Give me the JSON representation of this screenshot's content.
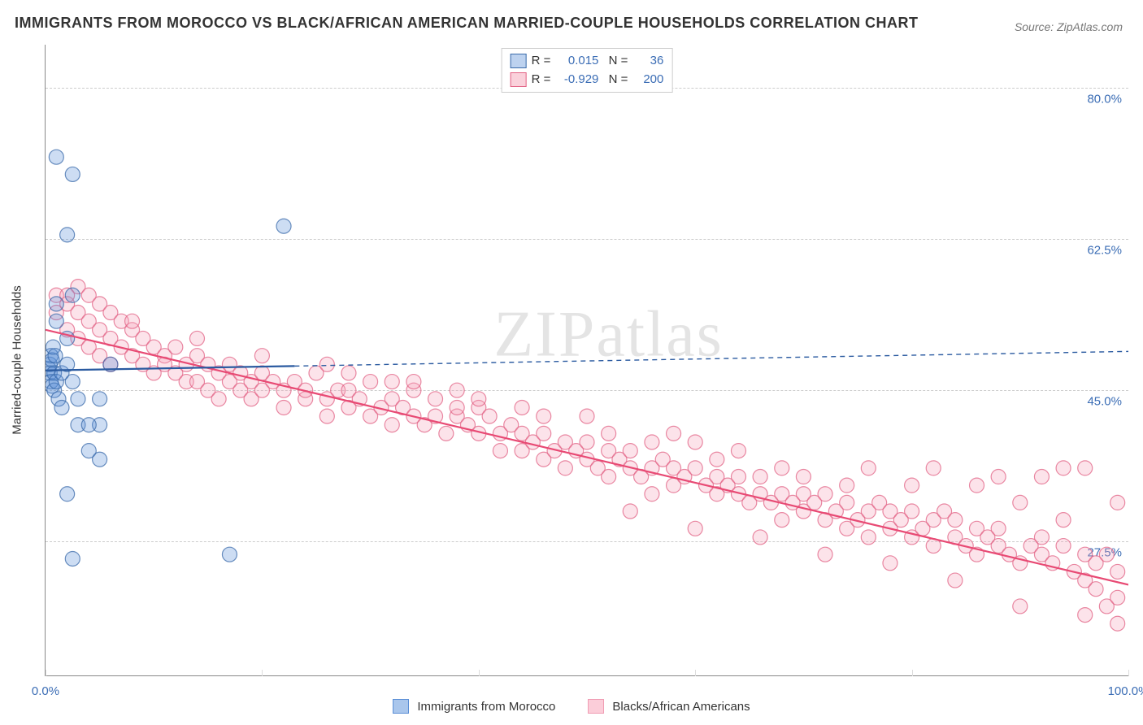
{
  "title": "IMMIGRANTS FROM MOROCCO VS BLACK/AFRICAN AMERICAN MARRIED-COUPLE HOUSEHOLDS CORRELATION CHART",
  "source_label": "Source:",
  "source_value": "ZipAtlas.com",
  "watermark": "ZIPatlas",
  "y_axis_title": "Married-couple Households",
  "chart": {
    "type": "scatter",
    "xlim": [
      0,
      100
    ],
    "ylim": [
      12,
      85
    ],
    "x_ticks": [
      0,
      20,
      40,
      60,
      80,
      100
    ],
    "x_tick_labels": [
      "0.0%",
      "",
      "",
      "",
      "",
      "100.0%"
    ],
    "y_grid": [
      27.5,
      45.0,
      62.5,
      80.0
    ],
    "y_grid_labels": [
      "27.5%",
      "45.0%",
      "62.5%",
      "80.0%"
    ],
    "grid_color": "#cccccc",
    "background_color": "#ffffff",
    "marker_radius": 9,
    "marker_fill_opacity": 0.3,
    "marker_stroke_opacity": 0.75,
    "marker_stroke_width": 1.2,
    "series": [
      {
        "name": "Immigrants from Morocco",
        "color": "#5b8fd6",
        "stroke": "#3a6aaa",
        "R": "0.015",
        "N": "36",
        "trend": {
          "y_at_0": 47.3,
          "y_at_100": 49.5,
          "solid_until_x": 23,
          "line_width": 2.2,
          "line_color": "#2a5aa0"
        },
        "points": [
          [
            0.3,
            47.5
          ],
          [
            0.4,
            48.0
          ],
          [
            0.4,
            47.0
          ],
          [
            0.5,
            49.0
          ],
          [
            0.5,
            46.0
          ],
          [
            0.6,
            48.5
          ],
          [
            0.6,
            45.5
          ],
          [
            0.7,
            50.0
          ],
          [
            0.8,
            45.0
          ],
          [
            0.8,
            47.0
          ],
          [
            0.9,
            49.0
          ],
          [
            1.0,
            46.0
          ],
          [
            1.0,
            55.0
          ],
          [
            1.0,
            53.0
          ],
          [
            1.2,
            44.0
          ],
          [
            1.5,
            47.0
          ],
          [
            1.5,
            43.0
          ],
          [
            2.0,
            48.0
          ],
          [
            2.0,
            51.0
          ],
          [
            2.0,
            63.0
          ],
          [
            2.5,
            46.0
          ],
          [
            2.5,
            56.0
          ],
          [
            3.0,
            44.0
          ],
          [
            1.0,
            72.0
          ],
          [
            2.5,
            70.0
          ],
          [
            3.0,
            41.0
          ],
          [
            5.0,
            41.0
          ],
          [
            5.0,
            44.0
          ],
          [
            4.0,
            41.0
          ],
          [
            4.0,
            38.0
          ],
          [
            2.0,
            33.0
          ],
          [
            2.5,
            25.5
          ],
          [
            5.0,
            37.0
          ],
          [
            17.0,
            26.0
          ],
          [
            22.0,
            64.0
          ],
          [
            6.0,
            48.0
          ]
        ]
      },
      {
        "name": "Blacks/African Americans",
        "color": "#f6a3b8",
        "stroke": "#e26284",
        "R": "-0.929",
        "N": "200",
        "trend": {
          "y_at_0": 52.0,
          "y_at_100": 22.5,
          "solid_until_x": 100,
          "line_width": 2.2,
          "line_color": "#e84a74"
        },
        "points": [
          [
            1,
            56
          ],
          [
            1,
            54
          ],
          [
            2,
            55
          ],
          [
            2,
            52
          ],
          [
            3,
            57
          ],
          [
            3,
            54
          ],
          [
            3,
            51
          ],
          [
            4,
            56
          ],
          [
            4,
            53
          ],
          [
            4,
            50
          ],
          [
            5,
            55
          ],
          [
            5,
            52
          ],
          [
            5,
            49
          ],
          [
            6,
            54
          ],
          [
            6,
            51
          ],
          [
            6,
            48
          ],
          [
            7,
            53
          ],
          [
            7,
            50
          ],
          [
            8,
            52
          ],
          [
            8,
            49
          ],
          [
            9,
            51
          ],
          [
            9,
            48
          ],
          [
            10,
            50
          ],
          [
            10,
            47
          ],
          [
            11,
            49
          ],
          [
            11,
            48
          ],
          [
            12,
            50
          ],
          [
            12,
            47
          ],
          [
            13,
            48
          ],
          [
            13,
            46
          ],
          [
            14,
            49
          ],
          [
            14,
            46
          ],
          [
            15,
            48
          ],
          [
            15,
            45
          ],
          [
            16,
            47
          ],
          [
            16,
            44
          ],
          [
            17,
            48
          ],
          [
            17,
            46
          ],
          [
            18,
            47
          ],
          [
            18,
            45
          ],
          [
            19,
            46
          ],
          [
            19,
            44
          ],
          [
            20,
            47
          ],
          [
            20,
            45
          ],
          [
            21,
            46
          ],
          [
            22,
            45
          ],
          [
            22,
            43
          ],
          [
            23,
            46
          ],
          [
            24,
            44
          ],
          [
            24,
            45
          ],
          [
            25,
            47
          ],
          [
            26,
            44
          ],
          [
            26,
            42
          ],
          [
            27,
            45
          ],
          [
            28,
            43
          ],
          [
            28,
            45
          ],
          [
            29,
            44
          ],
          [
            30,
            42
          ],
          [
            30,
            46
          ],
          [
            31,
            43
          ],
          [
            32,
            44
          ],
          [
            32,
            41
          ],
          [
            33,
            43
          ],
          [
            34,
            42
          ],
          [
            34,
            45
          ],
          [
            35,
            41
          ],
          [
            36,
            42
          ],
          [
            36,
            44
          ],
          [
            37,
            40
          ],
          [
            38,
            42
          ],
          [
            38,
            43
          ],
          [
            39,
            41
          ],
          [
            40,
            40
          ],
          [
            40,
            43
          ],
          [
            41,
            42
          ],
          [
            42,
            40
          ],
          [
            42,
            38
          ],
          [
            43,
            41
          ],
          [
            44,
            40
          ],
          [
            44,
            38
          ],
          [
            45,
            39
          ],
          [
            46,
            40
          ],
          [
            46,
            37
          ],
          [
            47,
            38
          ],
          [
            48,
            39
          ],
          [
            48,
            36
          ],
          [
            49,
            38
          ],
          [
            50,
            37
          ],
          [
            50,
            39
          ],
          [
            51,
            36
          ],
          [
            52,
            38
          ],
          [
            52,
            35
          ],
          [
            53,
            37
          ],
          [
            54,
            36
          ],
          [
            54,
            38
          ],
          [
            55,
            35
          ],
          [
            56,
            36
          ],
          [
            56,
            33
          ],
          [
            57,
            37
          ],
          [
            58,
            34
          ],
          [
            58,
            36
          ],
          [
            59,
            35
          ],
          [
            60,
            36
          ],
          [
            60,
            39
          ],
          [
            61,
            34
          ],
          [
            62,
            35
          ],
          [
            62,
            33
          ],
          [
            63,
            34
          ],
          [
            64,
            33
          ],
          [
            64,
            35
          ],
          [
            65,
            32
          ],
          [
            66,
            33
          ],
          [
            66,
            35
          ],
          [
            67,
            32
          ],
          [
            68,
            33
          ],
          [
            68,
            30
          ],
          [
            69,
            32
          ],
          [
            70,
            31
          ],
          [
            70,
            33
          ],
          [
            71,
            32
          ],
          [
            72,
            30
          ],
          [
            72,
            33
          ],
          [
            73,
            31
          ],
          [
            74,
            32
          ],
          [
            74,
            29
          ],
          [
            75,
            30
          ],
          [
            76,
            31
          ],
          [
            76,
            28
          ],
          [
            77,
            32
          ],
          [
            78,
            29
          ],
          [
            78,
            31
          ],
          [
            79,
            30
          ],
          [
            80,
            28
          ],
          [
            80,
            31
          ],
          [
            81,
            29
          ],
          [
            82,
            30
          ],
          [
            82,
            27
          ],
          [
            83,
            31
          ],
          [
            84,
            28
          ],
          [
            84,
            30
          ],
          [
            85,
            27
          ],
          [
            86,
            29
          ],
          [
            86,
            26
          ],
          [
            87,
            28
          ],
          [
            88,
            27
          ],
          [
            88,
            29
          ],
          [
            89,
            26
          ],
          [
            90,
            25
          ],
          [
            90,
            32
          ],
          [
            91,
            27
          ],
          [
            92,
            26
          ],
          [
            92,
            28
          ],
          [
            93,
            25
          ],
          [
            94,
            27
          ],
          [
            94,
            36
          ],
          [
            95,
            24
          ],
          [
            96,
            26
          ],
          [
            96,
            23
          ],
          [
            88,
            35
          ],
          [
            82,
            36
          ],
          [
            76,
            36
          ],
          [
            70,
            35
          ],
          [
            64,
            38
          ],
          [
            58,
            40
          ],
          [
            52,
            40
          ],
          [
            46,
            42
          ],
          [
            40,
            44
          ],
          [
            34,
            46
          ],
          [
            28,
            47
          ],
          [
            94,
            30
          ],
          [
            96,
            19
          ],
          [
            97,
            25
          ],
          [
            97,
            22
          ],
          [
            98,
            20
          ],
          [
            98,
            26
          ],
          [
            99,
            32
          ],
          [
            99,
            24
          ],
          [
            99,
            21
          ],
          [
            99,
            18
          ],
          [
            92,
            35
          ],
          [
            86,
            34
          ],
          [
            80,
            34
          ],
          [
            74,
            34
          ],
          [
            68,
            36
          ],
          [
            62,
            37
          ],
          [
            56,
            39
          ],
          [
            50,
            42
          ],
          [
            44,
            43
          ],
          [
            38,
            45
          ],
          [
            32,
            46
          ],
          [
            26,
            48
          ],
          [
            20,
            49
          ],
          [
            14,
            51
          ],
          [
            8,
            53
          ],
          [
            2,
            56
          ],
          [
            96,
            36
          ],
          [
            90,
            20
          ],
          [
            84,
            23
          ],
          [
            78,
            25
          ],
          [
            72,
            26
          ],
          [
            66,
            28
          ],
          [
            60,
            29
          ],
          [
            54,
            31
          ]
        ]
      }
    ]
  },
  "legend_labels": {
    "R": "R =",
    "N": "N ="
  },
  "bottom_legend": [
    {
      "label": "Immigrants from Morocco",
      "fill": "#a9c6ec",
      "stroke": "#5b8fd6"
    },
    {
      "label": "Blacks/African Americans",
      "fill": "#fbcdd9",
      "stroke": "#f09cb3"
    }
  ],
  "colors": {
    "title_text": "#333333",
    "axis_value": "#3b6db5",
    "source_text": "#777777"
  }
}
